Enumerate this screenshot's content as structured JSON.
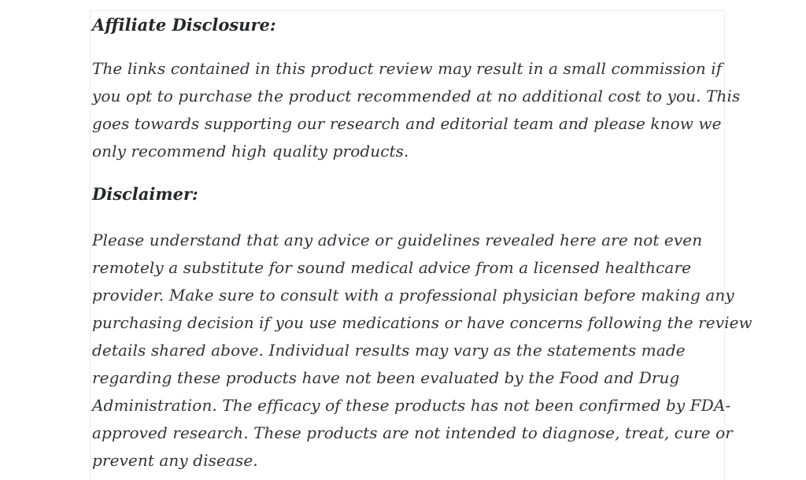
{
  "doc": {
    "affiliate_heading": "Affiliate Disclosure:",
    "affiliate_paragraph_lines": [
      "The links contained in this product review may result in a small commission if",
      "you opt to purchase the product recommended at no additional cost to you. This",
      "goes towards supporting our research and editorial team and please know we",
      "only recommend high quality products."
    ],
    "disclaimer_heading": "Disclaimer:",
    "disclaimer_paragraph_lines": [
      "Please understand that any advice or guidelines revealed here are not even",
      "remotely a substitute for sound medical advice from a licensed healthcare",
      "provider. Make sure to consult with a professional physician before making any",
      "purchasing decision if you use medications or have concerns following the review",
      "details shared above. Individual results may vary as the statements made",
      "regarding these products have not been evaluated by the Food and Drug",
      "Administration. The efficacy of these products has not been confirmed by FDA-",
      "approved research. These products are not intended to diagnose, treat, cure or",
      "prevent any disease."
    ],
    "colors": {
      "body_text": "#303438",
      "heading_text": "#24282b",
      "box_border": "#ececec",
      "page_background": "#ffffff"
    }
  }
}
